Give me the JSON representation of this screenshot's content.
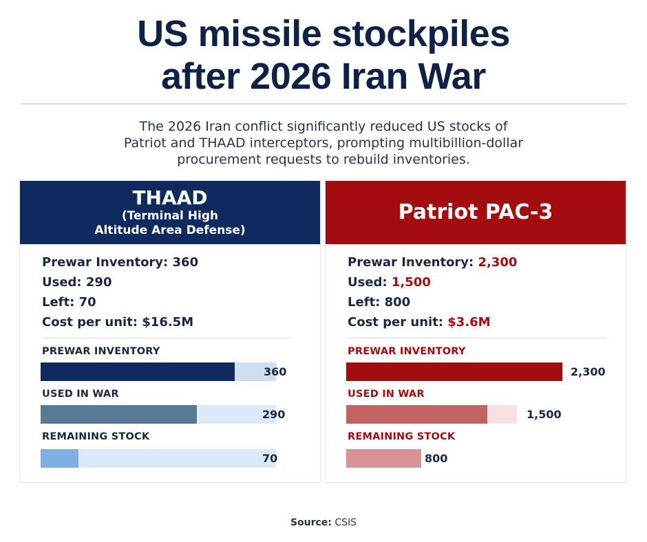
{
  "header": {
    "title_line1": "US missile stockpiles",
    "title_line2": "after 2026 Iran War",
    "subtitle_line1": "The 2026 Iran conflict significantly reduced US stocks of",
    "subtitle_line2": "Patriot and THAAD interceptors, prompting multibillion-dollar",
    "subtitle_line3": "procurement requests to rebuild inventories."
  },
  "thaad": {
    "name": "THAAD",
    "subname_line1": "(Terminal High",
    "subname_line2": "Altitude Area Defense)",
    "prewar_label": "Prewar Inventory: ",
    "prewar_value": "360",
    "used_label": "Used: ",
    "used_value": "290",
    "left_label": "Left: ",
    "left_value": "70",
    "cost_label": "Cost per unit: ",
    "cost_value": "$16.5M"
  },
  "patriot": {
    "name": "Patriot PAC-3",
    "prewar_label": "Prewar Inventory: ",
    "prewar_value": "2,300",
    "used_label": "Used: ",
    "used_value": "1,500",
    "left_label": "Left: ",
    "left_value": "800",
    "cost_label": "Cost per unit: ",
    "cost_value": "$3.6M"
  },
  "colors": {
    "thaad_header": "#0f2a5e",
    "patriot_header": "#a30d0f",
    "thaad_prewar": "#0f2a5e",
    "thaad_used": "#587a94",
    "thaad_remaining": "#7fb0e3",
    "thaad_track": "#dce9f8",
    "patriot_prewar": "#a30d0f",
    "patriot_used": "#c26262",
    "patriot_remaining": "#d99297",
    "patriot_track": "#f8e1e3"
  },
  "chart_data": [
    {
      "type": "bar",
      "title": "THAAD",
      "categories": [
        "PREWAR INVENTORY",
        "USED IN WAR",
        "REMAINING STOCK"
      ],
      "values": [
        360,
        290,
        70
      ],
      "value_labels": [
        "360",
        "290",
        "70"
      ]
    },
    {
      "type": "bar",
      "title": "Patriot PAC-3",
      "categories": [
        "PREWAR INVENTORY",
        "USED IN WAR",
        "REMAINING STOCK"
      ],
      "values": [
        2300,
        1500,
        800
      ],
      "value_labels": [
        "2,300",
        "1,500",
        "800"
      ]
    }
  ],
  "footer": {
    "source_label": "Source:",
    "source_value": " CSIS"
  }
}
